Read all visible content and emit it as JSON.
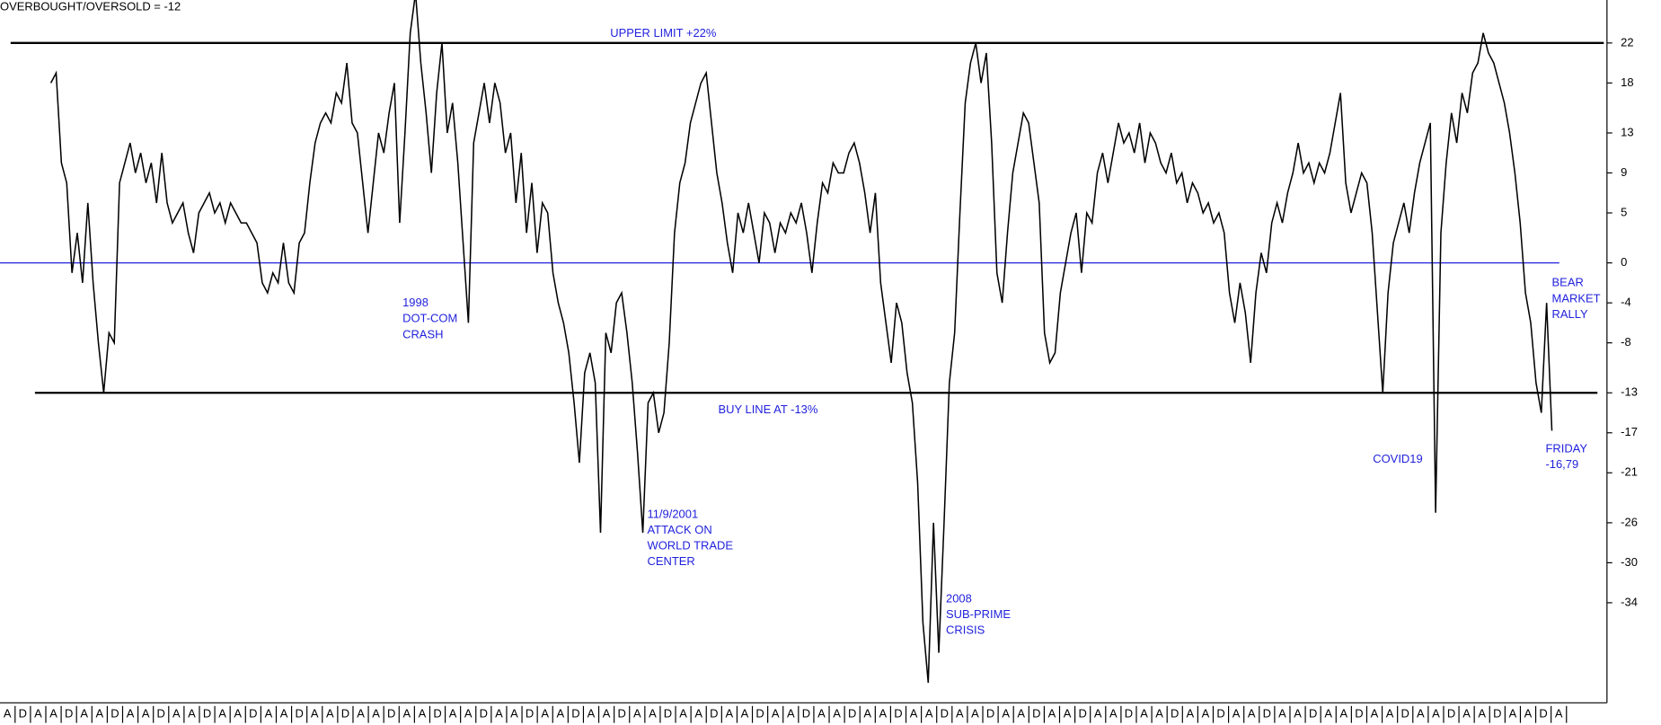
{
  "chart_data": {
    "type": "line",
    "title": "OVERBOUGHT/OVERSOLD = -12",
    "series": [
      {
        "color": "#000000",
        "values": [
          18,
          19,
          10,
          8,
          -1,
          3,
          -2,
          6,
          -2,
          -8,
          -13,
          -7,
          -8,
          8,
          10,
          12,
          9,
          11,
          8,
          10,
          6,
          11,
          6,
          4,
          5,
          6,
          3,
          1,
          5,
          6,
          7,
          5,
          6,
          4,
          6,
          5,
          4,
          4,
          3,
          2,
          -2,
          -3,
          -1,
          -2,
          2,
          -2,
          -3,
          2,
          3,
          8,
          12,
          14,
          15,
          14,
          17,
          16,
          20,
          14,
          13,
          8,
          3,
          8,
          13,
          11,
          15,
          18,
          4,
          13,
          23,
          27,
          20,
          15,
          9,
          17,
          22,
          13,
          16,
          10,
          2,
          -6,
          12,
          15,
          18,
          14,
          18,
          16,
          11,
          13,
          6,
          11,
          3,
          8,
          1,
          6,
          5,
          -1,
          -4,
          -6,
          -9,
          -14,
          -20,
          -11,
          -9,
          -12,
          -27,
          -7,
          -9,
          -4,
          -3,
          -7,
          -12,
          -19,
          -27,
          -14,
          -13,
          -17,
          -15,
          -8,
          3,
          8,
          10,
          14,
          16,
          18,
          19,
          14,
          9,
          6,
          2,
          -1,
          5,
          3,
          6,
          3,
          0,
          5,
          4,
          1,
          4,
          3,
          5,
          4,
          6,
          3,
          -1,
          4,
          8,
          7,
          10,
          9,
          9,
          11,
          12,
          10,
          7,
          3,
          7,
          -2,
          -6,
          -10,
          -4,
          -6,
          -11,
          -14,
          -22,
          -36,
          -42,
          -26,
          -39,
          -26,
          -12,
          -7,
          5,
          16,
          20,
          22,
          18,
          21,
          12,
          -1,
          -4,
          3,
          9,
          12,
          15,
          14,
          10,
          6,
          -7,
          -10,
          -9,
          -3,
          0,
          3,
          5,
          -1,
          5,
          4,
          9,
          11,
          8,
          11,
          14,
          12,
          13,
          11,
          14,
          10,
          13,
          12,
          10,
          9,
          11,
          8,
          9,
          6,
          8,
          7,
          5,
          6,
          4,
          5,
          3,
          -3,
          -6,
          -2,
          -5,
          -10,
          -3,
          1,
          -1,
          4,
          6,
          4,
          7,
          9,
          12,
          9,
          10,
          8,
          10,
          9,
          11,
          14,
          17,
          8,
          5,
          7,
          9,
          8,
          3,
          -5,
          -13,
          -3,
          2,
          4,
          6,
          3,
          7,
          10,
          12,
          14,
          -25,
          3,
          10,
          15,
          12,
          17,
          15,
          19,
          20,
          23,
          21,
          20,
          18,
          16,
          13,
          9,
          4,
          -3,
          -6,
          -12,
          -15,
          -4,
          -16.79
        ]
      }
    ],
    "ylim": [
      -43.8,
      26.3
    ],
    "yticks": [
      22,
      18,
      13,
      9,
      5,
      0,
      -4,
      -8,
      -13,
      -17,
      -21,
      -26,
      -30,
      -34
    ],
    "xtick_labels": [
      "A",
      "D",
      "A",
      "A",
      "D",
      "A",
      "A",
      "D",
      "A",
      "A",
      "D",
      "A",
      "A",
      "D",
      "A",
      "A",
      "D",
      "A",
      "A",
      "D",
      "A",
      "A",
      "D",
      "A",
      "A",
      "D",
      "A",
      "A",
      "D",
      "A",
      "A",
      "D",
      "A",
      "A",
      "D",
      "A",
      "A",
      "D",
      "A",
      "A",
      "D",
      "A",
      "A",
      "D",
      "A",
      "A",
      "D",
      "A",
      "A",
      "D",
      "A",
      "A",
      "D",
      "A",
      "A",
      "D",
      "A",
      "A",
      "D",
      "A",
      "A",
      "D",
      "A",
      "A",
      "D",
      "A",
      "A",
      "D",
      "A",
      "A",
      "D",
      "A",
      "A",
      "D",
      "A",
      "A",
      "D",
      "A",
      "A",
      "D",
      "A",
      "A",
      "D",
      "A",
      "A",
      "D",
      "A",
      "A",
      "D",
      "A",
      "A",
      "D",
      "A",
      "A",
      "D",
      "A",
      "A",
      "D",
      "A",
      "A",
      "D",
      "A"
    ],
    "reference_lines": [
      {
        "value": 22,
        "color": "#000000",
        "label": "UPPER LIMIT +22%"
      },
      {
        "value": 0,
        "color": "#2222dd"
      },
      {
        "value": -13,
        "color": "#000000",
        "label": "BUY LINE AT -13%"
      }
    ],
    "annotation_color": "#2222dd",
    "annotations": [
      {
        "lines": [
          "1998",
          "DOT-COM",
          "CRASH"
        ]
      },
      {
        "lines": [
          "11/9/2001",
          "ATTACK ON",
          "WORLD TRADE",
          "CENTER"
        ]
      },
      {
        "lines": [
          "2008",
          "SUB-PRIME",
          "CRISIS"
        ]
      },
      {
        "lines": [
          "COVID19"
        ]
      },
      {
        "lines": [
          "BEAR",
          "MARKET",
          "RALLY"
        ]
      },
      {
        "lines": [
          "FRIDAY",
          "-16,79"
        ]
      }
    ]
  }
}
